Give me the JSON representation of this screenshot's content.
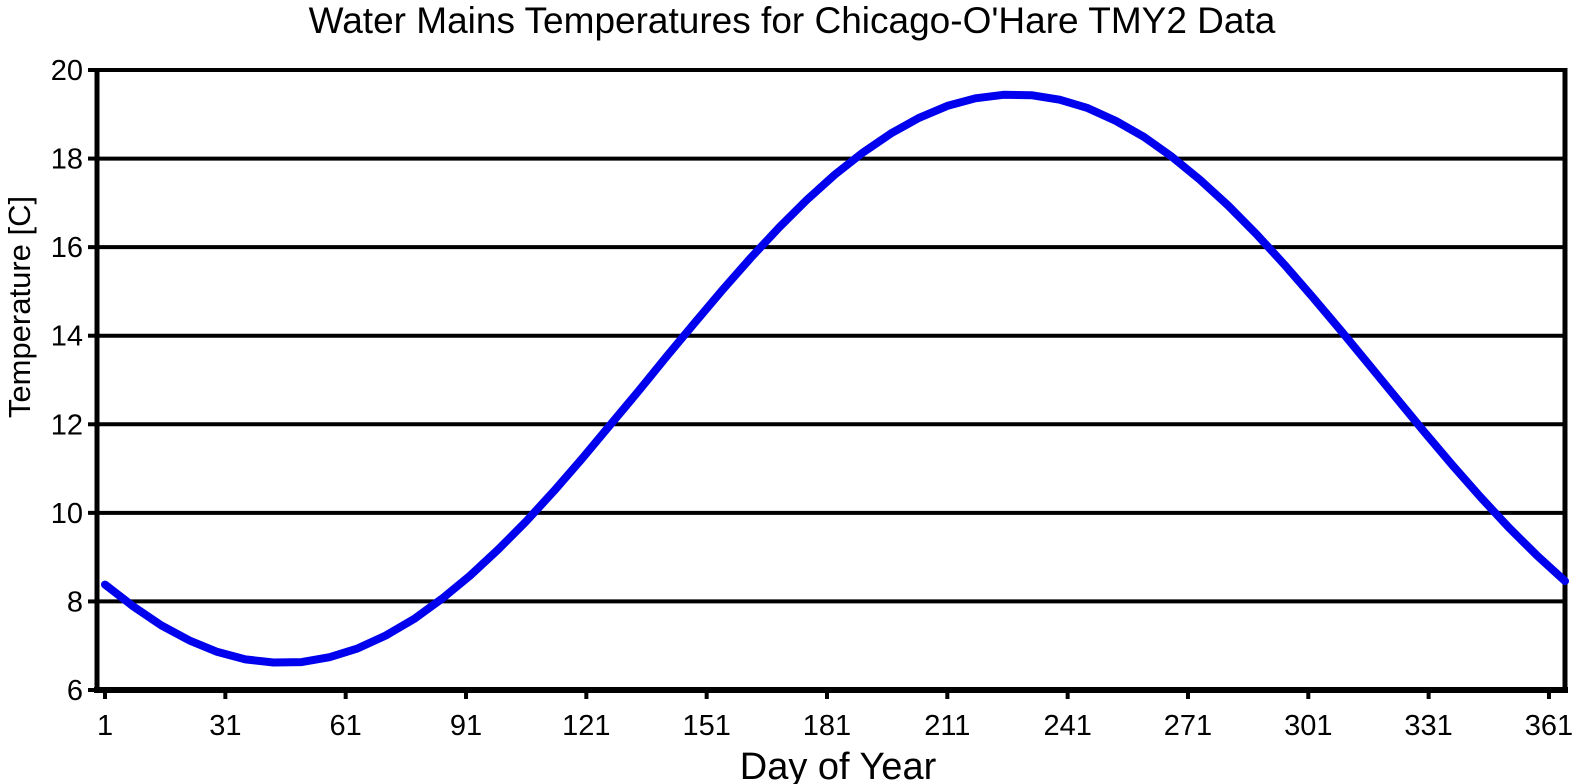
{
  "chart_data": {
    "type": "line",
    "title": "Water Mains Temperatures for Chicago-O'Hare TMY2 Data",
    "xlabel": "Day of Year",
    "ylabel": "Temperature [C]",
    "x_ticks": [
      1,
      31,
      61,
      91,
      121,
      151,
      181,
      211,
      241,
      271,
      301,
      331,
      361
    ],
    "y_ticks": [
      6,
      8,
      10,
      12,
      14,
      16,
      18,
      20
    ],
    "xlim": [
      -1,
      365
    ],
    "ylim": [
      6,
      20
    ],
    "grid": "horizontal gridlines every 2 C, full plot width",
    "legend_position": "none",
    "background_color": "#ffffff",
    "axis_color": "#000000",
    "line_color": "#0000ee",
    "series": [
      {
        "name": "Water mains temperature",
        "points": [
          [
            1,
            8.38
          ],
          [
            8,
            7.89
          ],
          [
            15,
            7.46
          ],
          [
            22,
            7.12
          ],
          [
            29,
            6.86
          ],
          [
            36,
            6.69
          ],
          [
            43,
            6.62
          ],
          [
            50,
            6.63
          ],
          [
            57,
            6.74
          ],
          [
            64,
            6.94
          ],
          [
            71,
            7.23
          ],
          [
            78,
            7.6
          ],
          [
            85,
            8.06
          ],
          [
            92,
            8.58
          ],
          [
            99,
            9.17
          ],
          [
            106,
            9.81
          ],
          [
            113,
            10.5
          ],
          [
            120,
            11.23
          ],
          [
            127,
            11.99
          ],
          [
            134,
            12.75
          ],
          [
            141,
            13.53
          ],
          [
            148,
            14.29
          ],
          [
            155,
            15.04
          ],
          [
            162,
            15.76
          ],
          [
            169,
            16.44
          ],
          [
            176,
            17.07
          ],
          [
            183,
            17.64
          ],
          [
            190,
            18.14
          ],
          [
            197,
            18.57
          ],
          [
            204,
            18.92
          ],
          [
            211,
            19.19
          ],
          [
            218,
            19.36
          ],
          [
            225,
            19.44
          ],
          [
            232,
            19.43
          ],
          [
            239,
            19.33
          ],
          [
            246,
            19.14
          ],
          [
            253,
            18.85
          ],
          [
            260,
            18.49
          ],
          [
            267,
            18.04
          ],
          [
            274,
            17.52
          ],
          [
            281,
            16.94
          ],
          [
            288,
            16.3
          ],
          [
            295,
            15.61
          ],
          [
            302,
            14.88
          ],
          [
            309,
            14.13
          ],
          [
            316,
            13.36
          ],
          [
            323,
            12.59
          ],
          [
            330,
            11.82
          ],
          [
            337,
            11.07
          ],
          [
            344,
            10.35
          ],
          [
            351,
            9.67
          ],
          [
            358,
            9.04
          ],
          [
            365,
            8.46
          ]
        ]
      }
    ]
  }
}
